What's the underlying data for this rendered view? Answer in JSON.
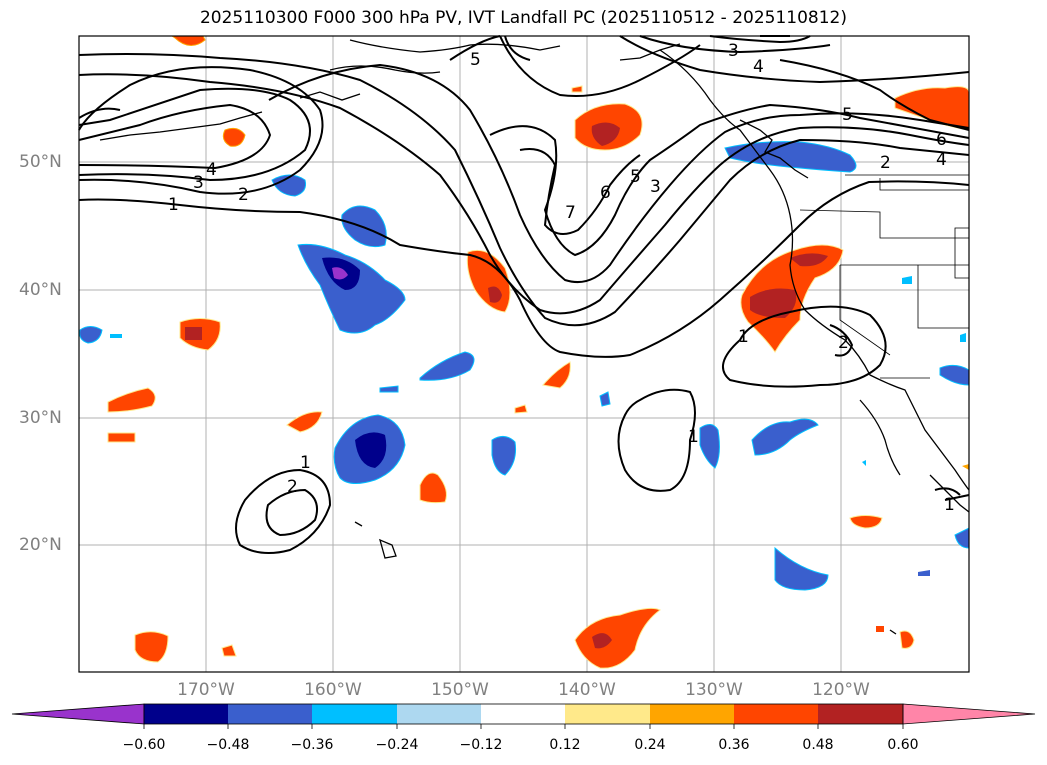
{
  "title": "2025110300 F000 300 hPa PV, IVT Landfall PC (2025110512 - 2025110812)",
  "lat_labels": [
    "50°N",
    "40°N",
    "30°N",
    "20°N"
  ],
  "lon_labels": [
    "170°W",
    "160°W",
    "150°W",
    "140°W",
    "130°W",
    "120°W"
  ],
  "contour_labels": [
    "1",
    "2",
    "3",
    "4",
    "5",
    "6",
    "7",
    "3",
    "4",
    "5",
    "6",
    "2",
    "4",
    "1",
    "2",
    "1",
    "2",
    "1",
    "1"
  ],
  "colorbar": {
    "ticks": [
      "−0.60",
      "−0.48",
      "−0.36",
      "−0.24",
      "−0.12",
      "0.12",
      "0.24",
      "0.36",
      "0.48",
      "0.60"
    ],
    "colors": [
      "#9933cc",
      "#00008b",
      "#3a5fcd",
      "#00bfff",
      "#add8f0",
      "#ffffff",
      "#ffe98a",
      "#ffa500",
      "#ff4500",
      "#b22222",
      "#ff85a8"
    ]
  },
  "colors": {
    "pos_low": "#ffe98a",
    "pos_mid": "#ffa500",
    "pos_high": "#ff4500",
    "pos_max": "#b22222",
    "neg_low": "#add8f0",
    "neg_mid": "#00bfff",
    "neg_high": "#3a5fcd",
    "neg_max": "#00008b",
    "neg_ext": "#9933cc"
  }
}
